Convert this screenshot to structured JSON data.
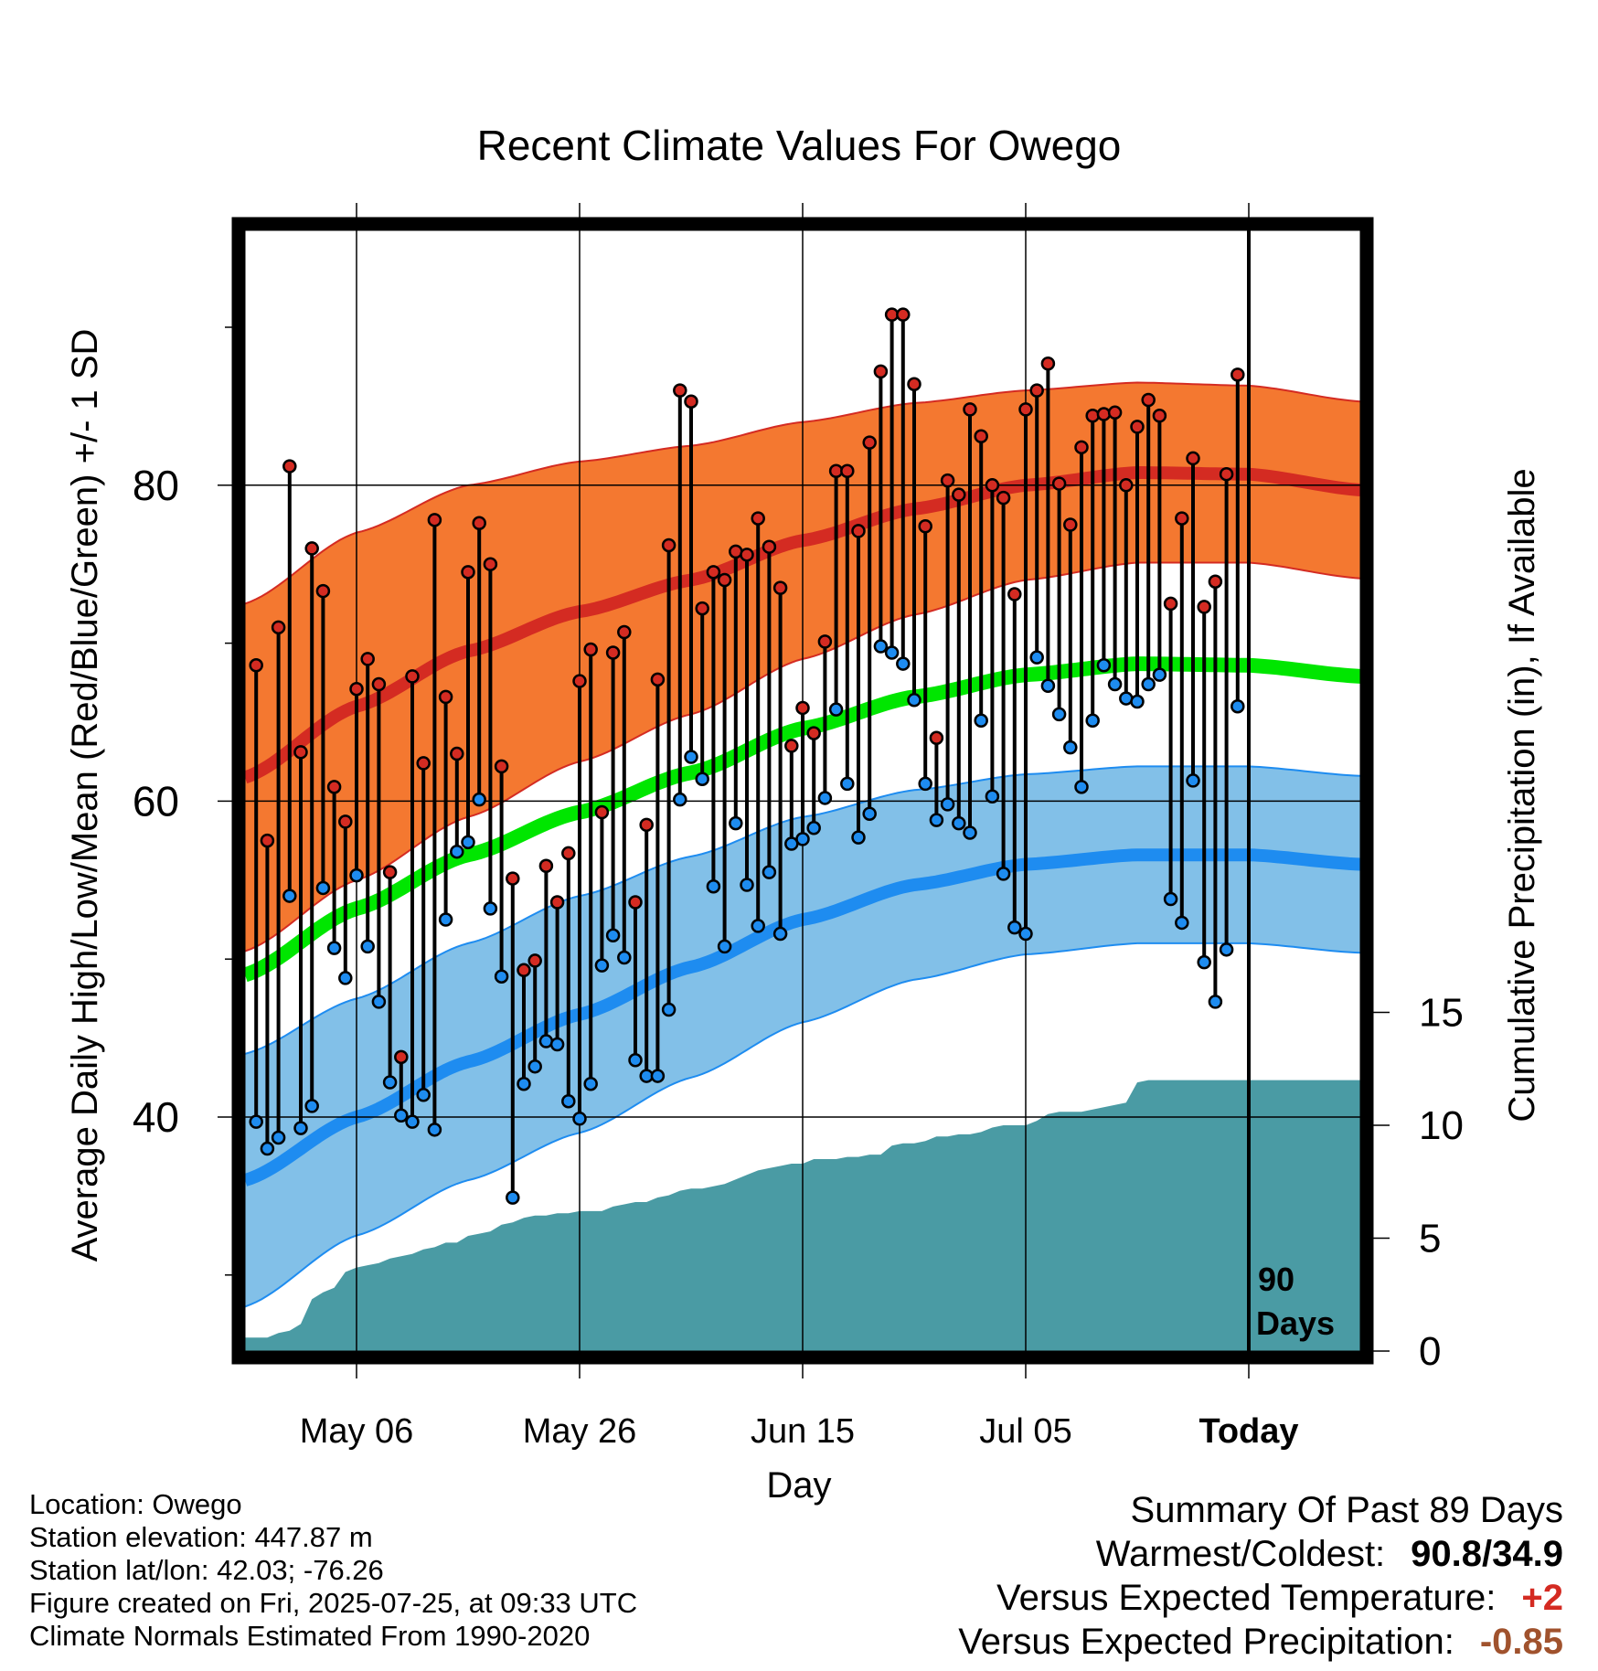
{
  "chart_data": {
    "type": "line",
    "title": "Recent Climate Values For Owego",
    "xlabel": "Day",
    "ylabel": "Average Daily High/Low/Mean (Red/Blue/Green) +/- 1 SD",
    "ylabel_right": "Cumulative Precipitation (in), If Available",
    "x_tick_labels": [
      "May 06",
      "May 26",
      "Jun 15",
      "Jul 05",
      "Today"
    ],
    "y_ticks_left": [
      "40",
      "60",
      "80"
    ],
    "y_ticks_right": [
      "0",
      "5",
      "10",
      "15"
    ],
    "today_marker": {
      "day_index": 90,
      "label_line1": "90",
      "label_line2": "Days"
    },
    "grid": true,
    "x_range_days": [
      0,
      100
    ],
    "x_tick_days": [
      10,
      30,
      50,
      70,
      90
    ],
    "y_range_left": [
      25,
      95
    ],
    "y_range_right": [
      0,
      60
    ],
    "normals": {
      "days": [
        0,
        10,
        20,
        30,
        40,
        50,
        60,
        70,
        80,
        90,
        100
      ],
      "high_mean": [
        61.5,
        66.0,
        69.5,
        72.0,
        74.0,
        76.5,
        78.5,
        80.0,
        80.8,
        80.7,
        79.7
      ],
      "high_sd": [
        11.0,
        11.0,
        10.5,
        9.5,
        8.5,
        7.5,
        6.7,
        6.0,
        5.7,
        5.6,
        5.6
      ],
      "low_mean": [
        36.0,
        40.0,
        43.5,
        46.5,
        49.5,
        52.5,
        54.7,
        56.0,
        56.6,
        56.6,
        56.0
      ],
      "low_sd": [
        8.0,
        7.5,
        7.5,
        7.5,
        7.0,
        6.5,
        6.0,
        5.7,
        5.6,
        5.6,
        5.6
      ],
      "mean": [
        49.0,
        53.2,
        56.6,
        59.3,
        61.8,
        64.6,
        66.6,
        68.0,
        68.7,
        68.6,
        67.9
      ]
    },
    "series": [
      {
        "name": "High",
        "color": "#d42b22",
        "values": [
          68.6,
          57.5,
          71.0,
          81.2,
          63.1,
          76.0,
          73.3,
          60.9,
          58.7,
          67.1,
          69.0,
          67.4,
          55.5,
          43.8,
          67.9,
          62.4,
          77.8,
          66.6,
          63.0,
          74.5,
          77.6,
          75.0,
          62.2,
          55.1,
          49.3,
          49.9,
          55.9,
          53.6,
          56.7,
          67.6,
          69.6,
          59.3,
          69.4,
          70.7,
          53.6,
          58.5,
          67.7,
          76.2,
          86.0,
          85.3,
          72.2,
          74.5,
          74.0,
          75.8,
          75.6,
          77.9,
          76.1,
          73.5,
          63.5,
          65.9,
          64.3,
          70.1,
          80.9,
          80.9,
          77.1,
          82.7,
          87.2,
          90.8,
          90.8,
          86.4,
          77.4,
          64.0,
          80.3,
          79.4,
          84.8,
          83.1,
          80.0,
          79.2,
          73.1,
          84.8,
          86.0,
          87.7,
          80.1,
          77.5,
          82.4,
          84.4,
          84.5,
          84.6,
          80.0,
          83.7,
          85.4,
          84.4,
          72.5,
          77.9,
          81.7,
          72.3,
          73.9,
          80.7,
          87.0
        ],
        "low": [
          39.7,
          38.0,
          38.7,
          54.0,
          39.3,
          40.7,
          54.5,
          50.7,
          48.8,
          55.3,
          50.8,
          47.3,
          42.2,
          40.1,
          39.7,
          41.4,
          39.2,
          52.5,
          56.8,
          57.4,
          60.1,
          53.2,
          48.9,
          34.9,
          42.1,
          43.2,
          44.8,
          44.6,
          41.0,
          39.9,
          42.1,
          49.6,
          51.5,
          50.1,
          43.6,
          42.6,
          42.6,
          46.8,
          60.1,
          62.8,
          61.4,
          54.6,
          50.8,
          58.6,
          54.7,
          52.1,
          55.5,
          51.6,
          57.3,
          57.6,
          58.3,
          60.2,
          65.8,
          61.1,
          57.7,
          59.2,
          69.8,
          69.4,
          68.7,
          66.4,
          61.1,
          58.8,
          59.8,
          58.6,
          58.0,
          65.1,
          60.3,
          55.4,
          52.0,
          51.6,
          69.1,
          67.3,
          65.5,
          63.4,
          60.9,
          65.1,
          68.6,
          67.4,
          66.5,
          66.3,
          67.4,
          68.0,
          53.8,
          52.3,
          61.3,
          49.8,
          47.3,
          50.6,
          66.0
        ]
      }
    ],
    "precip_cumulative": {
      "days": [
        0,
        2,
        3,
        4,
        5,
        6,
        7,
        8,
        9,
        10,
        11,
        12,
        13,
        14,
        15,
        16,
        17,
        18,
        19,
        20,
        21,
        22,
        23,
        24,
        25,
        26,
        27,
        28,
        29,
        30,
        31,
        32,
        33,
        34,
        35,
        36,
        37,
        38,
        39,
        40,
        41,
        42,
        43,
        44,
        45,
        46,
        47,
        48,
        49,
        50,
        51,
        52,
        53,
        54,
        55,
        56,
        57,
        58,
        59,
        60,
        61,
        62,
        63,
        64,
        65,
        66,
        67,
        68,
        69,
        70,
        71,
        72,
        73,
        74,
        75,
        76,
        77,
        78,
        79,
        80,
        81,
        82,
        83,
        84,
        85,
        86,
        87,
        88,
        89,
        90,
        99
      ],
      "values": [
        0.6,
        0.6,
        0.8,
        0.9,
        1.2,
        2.3,
        2.6,
        2.8,
        3.5,
        3.7,
        3.8,
        3.9,
        4.1,
        4.2,
        4.3,
        4.5,
        4.6,
        4.8,
        4.8,
        5.1,
        5.2,
        5.3,
        5.6,
        5.7,
        5.9,
        6.0,
        6.0,
        6.1,
        6.1,
        6.2,
        6.2,
        6.2,
        6.4,
        6.5,
        6.6,
        6.6,
        6.8,
        6.9,
        7.1,
        7.2,
        7.2,
        7.3,
        7.4,
        7.6,
        7.8,
        8.0,
        8.1,
        8.2,
        8.3,
        8.3,
        8.5,
        8.5,
        8.5,
        8.6,
        8.6,
        8.7,
        8.7,
        9.1,
        9.2,
        9.2,
        9.3,
        9.5,
        9.5,
        9.6,
        9.6,
        9.7,
        9.9,
        10.0,
        10.0,
        10.0,
        10.2,
        10.5,
        10.6,
        10.6,
        10.6,
        10.7,
        10.8,
        10.9,
        11.0,
        11.9,
        12.0,
        12.0,
        12.0,
        12.0,
        12.0,
        12.0,
        12.0,
        12.0,
        12.0,
        12.0,
        12.0
      ]
    }
  },
  "info": {
    "location": "Location: Owego",
    "elevation": "Station elevation: 447.87 m",
    "latlon": "Station lat/lon: 42.03; -76.26",
    "created": "Figure created on Fri, 2025-07-25, at 09:33 UTC",
    "normals": "Climate Normals Estimated From 1990-2020"
  },
  "summary": {
    "title": "Summary Of Past 89 Days",
    "warm_cold_label": "Warmest/Coldest:",
    "warm_cold_value": "90.8/34.9",
    "temp_label": "Versus Expected Temperature:",
    "temp_value": "+2",
    "temp_color": "#d42b22",
    "precip_label": "Versus Expected Precipitation:",
    "precip_value": "-0.85",
    "precip_color": "#a0522d"
  }
}
